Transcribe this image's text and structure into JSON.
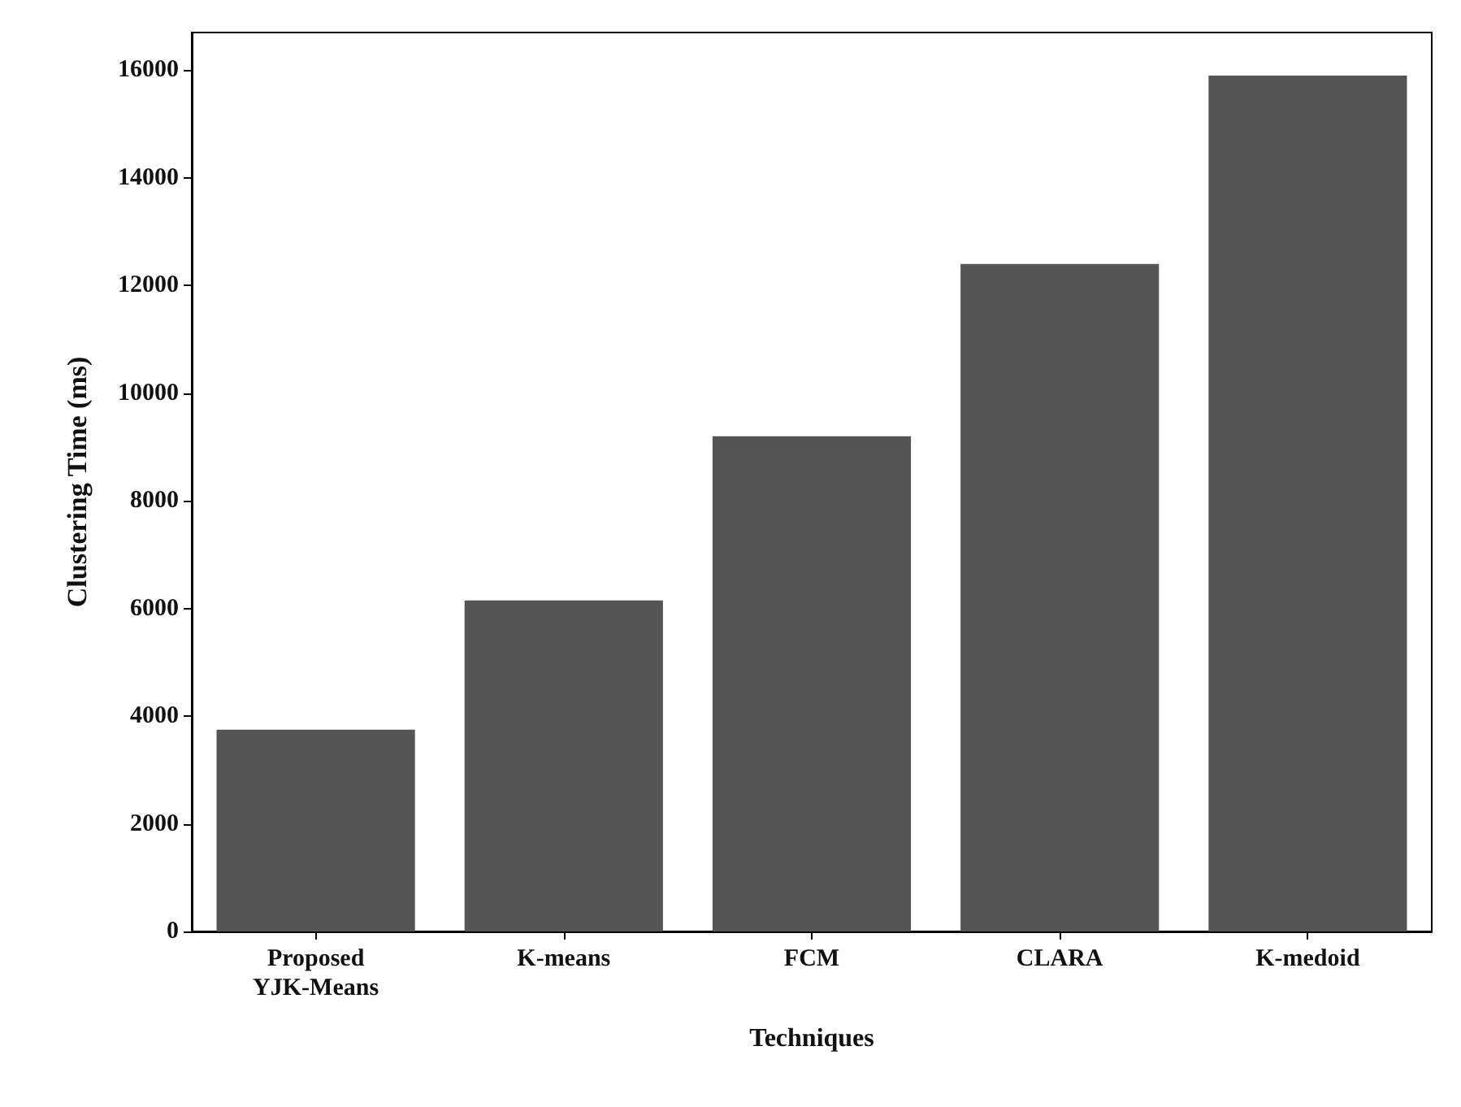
{
  "chart_data": {
    "type": "bar",
    "xlabel": "Techniques",
    "ylabel": "Clustering Time (ms)",
    "categories": [
      "Proposed\nYJK-Means",
      "K-means",
      "FCM",
      "CLARA",
      "K-medoid"
    ],
    "values": [
      3750,
      6150,
      9200,
      12400,
      15900
    ],
    "color": "#555555",
    "ylim": [
      0,
      16700
    ],
    "yticks": [
      0,
      2000,
      4000,
      6000,
      8000,
      10000,
      12000,
      14000,
      16000
    ],
    "grid": false
  }
}
